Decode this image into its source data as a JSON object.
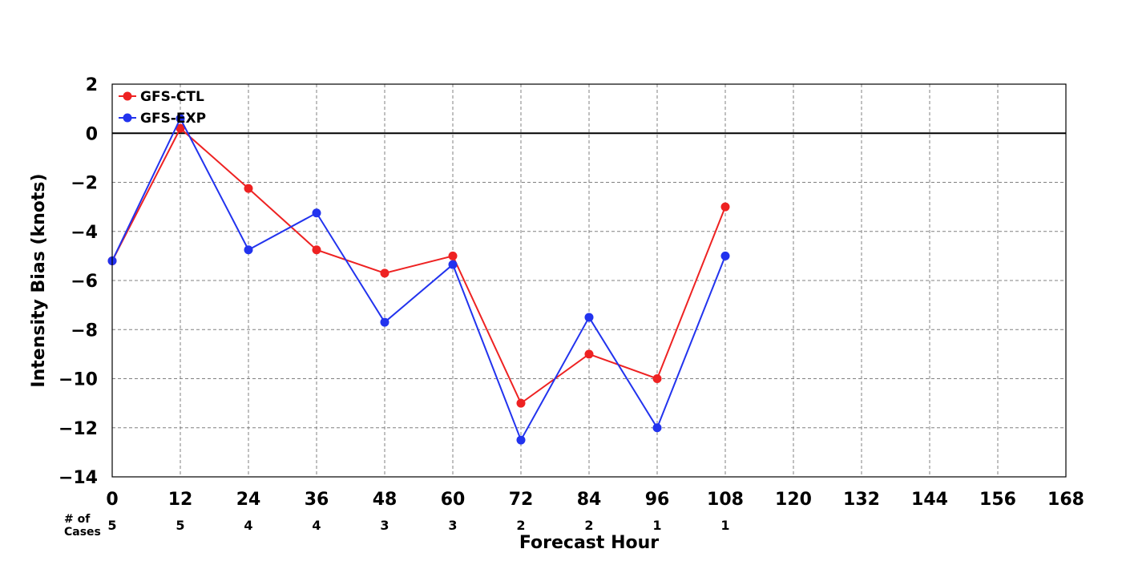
{
  "chart_data": {
    "type": "line",
    "xlabel": "Forecast Hour",
    "ylabel": "Intensity Bias (knots)",
    "xlim": [
      0,
      168
    ],
    "ylim": [
      -14,
      2
    ],
    "x_ticks": [
      0,
      12,
      24,
      36,
      48,
      60,
      72,
      84,
      96,
      108,
      120,
      132,
      144,
      156,
      168
    ],
    "y_ticks": [
      2,
      0,
      -2,
      -4,
      -6,
      -8,
      -10,
      -12,
      -14
    ],
    "y_tick_labels": [
      "2",
      "0",
      "−2",
      "−4",
      "−6",
      "−8",
      "−10",
      "−12",
      "−14"
    ],
    "grid": true,
    "zero_line": true,
    "legend_position": "top-left",
    "x": [
      0,
      12,
      24,
      36,
      48,
      60,
      72,
      84,
      96,
      108
    ],
    "series": [
      {
        "name": "GFS-CTL",
        "color": "#ee2222",
        "values": [
          -5.2,
          0.2,
          -2.25,
          -4.75,
          -5.7,
          -5.0,
          -11.0,
          -9.0,
          -10.0,
          -3.0
        ]
      },
      {
        "name": "GFS-EXP",
        "color": "#2233ee",
        "values": [
          -5.2,
          0.6,
          -4.75,
          -3.25,
          -7.7,
          -5.35,
          -12.5,
          -7.5,
          -12.0,
          -5.0
        ]
      }
    ],
    "cases": {
      "label": [
        "# of",
        "Cases"
      ],
      "values": [
        "5",
        "5",
        "4",
        "4",
        "3",
        "3",
        "2",
        "2",
        "1",
        "1"
      ]
    }
  }
}
